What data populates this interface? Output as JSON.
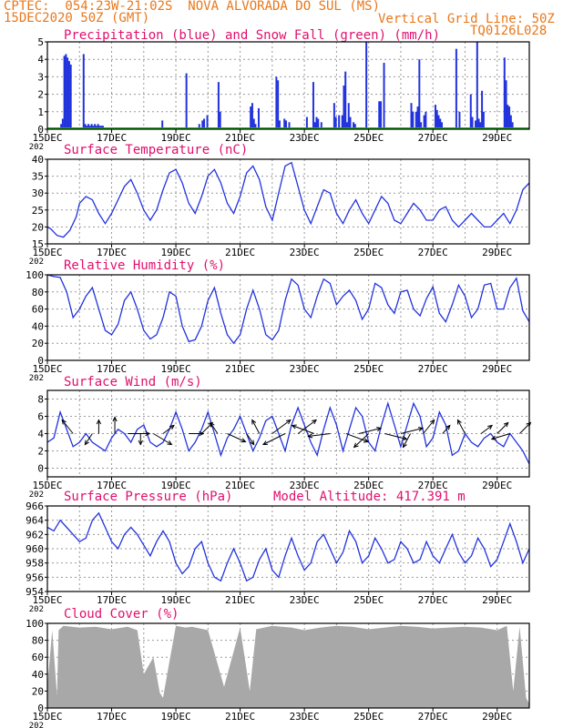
{
  "header": {
    "station": "CPTEC:  054:23W-21:02S  NOVA ALVORADA DO SUL (MS)",
    "date": "15DEC2020 50Z (GMT)",
    "grid": "Vertical Grid Line: 50Z",
    "code": "TQ0126L028",
    "color": "#e8781c"
  },
  "colors": {
    "title": "#e0106e",
    "line": "#2233dd",
    "snow": "#22aa22",
    "cloud": "#a8a8a8",
    "arrow": "#000000"
  },
  "x_axis": {
    "tick_labels": [
      "15DEC",
      "17DEC",
      "19DEC",
      "21DEC",
      "23DEC",
      "25DEC",
      "27DEC",
      "29DEC"
    ],
    "year_fragment": "202",
    "days": 15
  },
  "chart_data": [
    {
      "id": "precip",
      "type": "bar",
      "title": "Precipitation (blue) and Snow Fall (green) (mm/h)",
      "ylim": [
        0,
        5
      ],
      "yticks": [
        "0",
        "1",
        "2",
        "3",
        "4",
        "5"
      ],
      "series": [
        {
          "name": "Precipitation",
          "color": "blue",
          "x_days": [
            0.4,
            0.45,
            0.5,
            0.55,
            0.6,
            0.65,
            0.7,
            1.1,
            1.15,
            1.2,
            1.25,
            1.3,
            1.35,
            1.4,
            1.45,
            1.5,
            1.55,
            1.6,
            1.65,
            1.7,
            3.55,
            4.3,
            4.7,
            4.8,
            4.85,
            4.95,
            5.3,
            5.35,
            6.3,
            6.35,
            6.4,
            6.45,
            6.55,
            7.1,
            7.15,
            7.2,
            7.35,
            7.4,
            7.5,
            8.05,
            8.25,
            8.3,
            8.35,
            8.4,
            8.5,
            8.9,
            8.95,
            9.05,
            9.15,
            9.2,
            9.25,
            9.3,
            9.35,
            9.4,
            9.5,
            9.55,
            9.9,
            10.3,
            10.35,
            10.45,
            11.3,
            11.35,
            11.45,
            11.5,
            11.55,
            11.6,
            11.7,
            11.75,
            12.05,
            12.1,
            12.15,
            12.2,
            12.25,
            12.7,
            12.8,
            13.15,
            13.2,
            13.3,
            13.35,
            13.4,
            13.45,
            13.5,
            13.55,
            14.2,
            14.25,
            14.3,
            14.35,
            14.4,
            14.45
          ],
          "values": [
            0.3,
            0.6,
            4.2,
            4.3,
            4.1,
            3.9,
            3.7,
            4.3,
            0.3,
            0.2,
            0.3,
            0.2,
            0.3,
            0.2,
            0.3,
            0.2,
            0.3,
            0.2,
            0.2,
            0.2,
            0.5,
            3.2,
            0.3,
            0.5,
            0.6,
            0.8,
            2.7,
            1.0,
            1.3,
            1.5,
            0.6,
            0.3,
            1.2,
            3.0,
            2.8,
            0.5,
            0.6,
            0.5,
            0.4,
            0.7,
            2.7,
            0.4,
            0.7,
            0.6,
            0.4,
            1.5,
            0.7,
            0.8,
            0.8,
            2.5,
            3.3,
            0.4,
            1.5,
            0.7,
            0.4,
            0.3,
            5.0,
            1.6,
            1.6,
            3.8,
            1.5,
            1.0,
            1.0,
            1.3,
            4.0,
            0.4,
            0.8,
            1.0,
            1.4,
            1.1,
            0.8,
            0.6,
            0.4,
            4.6,
            1.0,
            2.0,
            0.7,
            0.5,
            5.0,
            0.6,
            0.4,
            2.2,
            1.0,
            4.1,
            2.8,
            1.4,
            1.3,
            0.8,
            0.4
          ]
        },
        {
          "name": "Snow Fall",
          "color": "green",
          "values": []
        }
      ]
    },
    {
      "id": "temp",
      "type": "line",
      "title": "Surface Temperature (nC)",
      "ylim": [
        15,
        40
      ],
      "yticks": [
        "15",
        "20",
        "25",
        "30",
        "35",
        "40"
      ],
      "x_days": [
        0,
        0.1,
        0.3,
        0.5,
        0.7,
        0.9,
        1.0,
        1.2,
        1.4,
        1.6,
        1.8,
        2.0,
        2.2,
        2.4,
        2.6,
        2.8,
        3.0,
        3.2,
        3.4,
        3.6,
        3.8,
        4.0,
        4.2,
        4.4,
        4.6,
        4.8,
        5.0,
        5.2,
        5.4,
        5.6,
        5.8,
        6.0,
        6.2,
        6.4,
        6.6,
        6.8,
        7.0,
        7.2,
        7.4,
        7.6,
        7.8,
        8.0,
        8.2,
        8.4,
        8.6,
        8.8,
        9.0,
        9.2,
        9.4,
        9.6,
        9.8,
        10.0,
        10.2,
        10.4,
        10.6,
        10.8,
        11.0,
        11.2,
        11.4,
        11.6,
        11.8,
        12.0,
        12.2,
        12.4,
        12.6,
        12.8,
        13.0,
        13.2,
        13.4,
        13.6,
        13.8,
        14.0,
        14.2,
        14.4,
        14.6,
        14.8,
        15.0
      ],
      "values": [
        20,
        19.5,
        17.5,
        17,
        19,
        23,
        27,
        29,
        28,
        24,
        21,
        24,
        28,
        32,
        34,
        30,
        25,
        22,
        25,
        31,
        36,
        37,
        33,
        27,
        24,
        29,
        35,
        37,
        33,
        27,
        24,
        29,
        36,
        38,
        34,
        26,
        22,
        30,
        38,
        39,
        32,
        25,
        21,
        26,
        31,
        30,
        24,
        21,
        25,
        28,
        24,
        21,
        25,
        29,
        27,
        22,
        21,
        24,
        27,
        25,
        22,
        22,
        25,
        26,
        22,
        20,
        22,
        24,
        22,
        20,
        20,
        22,
        24,
        21,
        25,
        31,
        33
      ],
      "series_color": "blue"
    },
    {
      "id": "rh",
      "type": "line",
      "title": "Relative Humidity (%)",
      "ylim": [
        0,
        100
      ],
      "yticks": [
        "0",
        "20",
        "40",
        "60",
        "80",
        "100"
      ],
      "x_days": [
        0,
        0.2,
        0.4,
        0.6,
        0.8,
        1.0,
        1.2,
        1.4,
        1.6,
        1.8,
        2.0,
        2.2,
        2.4,
        2.6,
        2.8,
        3.0,
        3.2,
        3.4,
        3.6,
        3.8,
        4.0,
        4.2,
        4.4,
        4.6,
        4.8,
        5.0,
        5.2,
        5.4,
        5.6,
        5.8,
        6.0,
        6.2,
        6.4,
        6.6,
        6.8,
        7.0,
        7.2,
        7.4,
        7.6,
        7.8,
        8.0,
        8.2,
        8.4,
        8.6,
        8.8,
        9.0,
        9.2,
        9.4,
        9.6,
        9.8,
        10.0,
        10.2,
        10.4,
        10.6,
        10.8,
        11.0,
        11.2,
        11.4,
        11.6,
        11.8,
        12.0,
        12.2,
        12.4,
        12.6,
        12.8,
        13.0,
        13.2,
        13.4,
        13.6,
        13.8,
        14.0,
        14.2,
        14.4,
        14.6,
        14.8,
        15.0
      ],
      "values": [
        100,
        98,
        97,
        80,
        50,
        60,
        75,
        85,
        60,
        35,
        30,
        42,
        70,
        80,
        60,
        35,
        25,
        30,
        50,
        80,
        75,
        40,
        22,
        24,
        40,
        70,
        85,
        55,
        30,
        20,
        30,
        60,
        82,
        60,
        30,
        24,
        35,
        70,
        95,
        88,
        60,
        50,
        75,
        95,
        90,
        65,
        75,
        82,
        70,
        48,
        60,
        90,
        85,
        65,
        55,
        80,
        82,
        60,
        52,
        72,
        86,
        55,
        45,
        65,
        88,
        75,
        50,
        60,
        88,
        90,
        60,
        60,
        85,
        96,
        58,
        45
      ]
    },
    {
      "id": "wind",
      "type": "line",
      "title": "Surface Wind (m/s)",
      "ylim": [
        -1,
        9
      ],
      "yticks": [
        "0",
        "2",
        "4",
        "6",
        "8"
      ],
      "x_days": [
        0,
        0.2,
        0.4,
        0.6,
        0.8,
        1.0,
        1.2,
        1.4,
        1.6,
        1.8,
        2.0,
        2.2,
        2.4,
        2.6,
        2.8,
        3.0,
        3.2,
        3.4,
        3.6,
        3.8,
        4.0,
        4.2,
        4.4,
        4.6,
        4.8,
        5.0,
        5.2,
        5.4,
        5.6,
        5.8,
        6.0,
        6.2,
        6.4,
        6.6,
        6.8,
        7.0,
        7.2,
        7.4,
        7.6,
        7.8,
        8.0,
        8.2,
        8.4,
        8.6,
        8.8,
        9.0,
        9.2,
        9.4,
        9.6,
        9.8,
        10.0,
        10.2,
        10.4,
        10.6,
        10.8,
        11.0,
        11.2,
        11.4,
        11.6,
        11.8,
        12.0,
        12.2,
        12.4,
        12.6,
        12.8,
        13.0,
        13.2,
        13.4,
        13.6,
        13.8,
        14.0,
        14.2,
        14.4,
        14.6,
        14.8,
        15.0
      ],
      "values": [
        3,
        3.5,
        6.5,
        4.5,
        2.5,
        3,
        4,
        3,
        2.5,
        2,
        3.5,
        4.5,
        4,
        3,
        4.5,
        5,
        3,
        2.5,
        3,
        4.5,
        6.5,
        4.5,
        2,
        3,
        4.5,
        6.5,
        4,
        1.5,
        3.5,
        4.5,
        6,
        4,
        2,
        3.5,
        5.5,
        6,
        4,
        2,
        5,
        7,
        5,
        3,
        1.5,
        4.5,
        7,
        5,
        2,
        4.5,
        7,
        6,
        3,
        2,
        5,
        7.5,
        5,
        2.5,
        5,
        7.5,
        6,
        2.5,
        3.5,
        6.5,
        5,
        1.5,
        2,
        4,
        3,
        2.5,
        3.5,
        4,
        3,
        2.5,
        4,
        3,
        2,
        0.5
      ],
      "arrows": [
        {
          "x": 0.8,
          "dx": -0.3,
          "dy": 0.5
        },
        {
          "x": 1.4,
          "dx": -0.2,
          "dy": -0.4
        },
        {
          "x": 1.6,
          "dx": 0.0,
          "dy": 0.5
        },
        {
          "x": 2.1,
          "dx": 0.0,
          "dy": 0.6
        },
        {
          "x": 2.5,
          "dx": 0.6,
          "dy": 0.0
        },
        {
          "x": 2.9,
          "dx": 0.0,
          "dy": -0.4
        },
        {
          "x": 3.3,
          "dx": 0.5,
          "dy": -0.4
        },
        {
          "x": 3.6,
          "dx": 0.3,
          "dy": 0.3
        },
        {
          "x": 4.4,
          "dx": 0.4,
          "dy": 0.0
        },
        {
          "x": 4.8,
          "dx": 0.3,
          "dy": 0.4
        },
        {
          "x": 5.3,
          "dx": -0.2,
          "dy": 0.4
        },
        {
          "x": 5.6,
          "dx": 0.5,
          "dy": -0.3
        },
        {
          "x": 6.2,
          "dx": 0.2,
          "dy": -0.4
        },
        {
          "x": 6.6,
          "dx": -0.2,
          "dy": 0.5
        },
        {
          "x": 7.0,
          "dx": 0.5,
          "dy": 0.5
        },
        {
          "x": 7.4,
          "dx": -0.6,
          "dy": -0.4
        },
        {
          "x": 7.8,
          "dx": 0.5,
          "dy": 0.5
        },
        {
          "x": 8.3,
          "dx": -0.6,
          "dy": 0.3
        },
        {
          "x": 8.8,
          "dx": -0.6,
          "dy": -0.1
        },
        {
          "x": 9.3,
          "dx": 0.6,
          "dy": -0.3
        },
        {
          "x": 9.7,
          "dx": 0.6,
          "dy": 0.2
        },
        {
          "x": 10.0,
          "dx": -0.4,
          "dy": -0.5
        },
        {
          "x": 10.5,
          "dx": 0.6,
          "dy": -0.2
        },
        {
          "x": 11.0,
          "dx": 0.6,
          "dy": 0.2
        },
        {
          "x": 11.3,
          "dx": -0.2,
          "dy": -0.5
        },
        {
          "x": 11.7,
          "dx": 0.3,
          "dy": 0.5
        },
        {
          "x": 12.3,
          "dx": 0.2,
          "dy": 0.3
        },
        {
          "x": 13.0,
          "dx": -0.2,
          "dy": 0.5
        },
        {
          "x": 13.5,
          "dx": 0.3,
          "dy": 0.3
        },
        {
          "x": 14.0,
          "dx": 0.3,
          "dy": 0.4
        },
        {
          "x": 14.4,
          "dx": -0.5,
          "dy": -0.2
        },
        {
          "x": 14.7,
          "dx": 0.3,
          "dy": 0.4
        }
      ]
    },
    {
      "id": "pressure",
      "type": "line",
      "title": "Surface Pressure (hPa)",
      "annotation": "Model Altitude: 417.391 m",
      "ylim": [
        954,
        966
      ],
      "yticks": [
        "954",
        "956",
        "958",
        "960",
        "962",
        "964",
        "966"
      ],
      "x_days": [
        0,
        0.2,
        0.4,
        0.6,
        0.8,
        1.0,
        1.2,
        1.4,
        1.6,
        1.8,
        2.0,
        2.2,
        2.4,
        2.6,
        2.8,
        3.0,
        3.2,
        3.4,
        3.6,
        3.8,
        4.0,
        4.2,
        4.4,
        4.6,
        4.8,
        5.0,
        5.2,
        5.4,
        5.6,
        5.8,
        6.0,
        6.2,
        6.4,
        6.6,
        6.8,
        7.0,
        7.2,
        7.4,
        7.6,
        7.8,
        8.0,
        8.2,
        8.4,
        8.6,
        8.8,
        9.0,
        9.2,
        9.4,
        9.6,
        9.8,
        10.0,
        10.2,
        10.4,
        10.6,
        10.8,
        11.0,
        11.2,
        11.4,
        11.6,
        11.8,
        12.0,
        12.2,
        12.4,
        12.6,
        12.8,
        13.0,
        13.2,
        13.4,
        13.6,
        13.8,
        14.0,
        14.2,
        14.4,
        14.6,
        14.8,
        15.0
      ],
      "values": [
        963,
        962.5,
        964,
        963,
        962,
        961,
        961.5,
        964,
        965,
        963,
        961,
        960,
        962,
        963,
        962,
        960.5,
        959,
        961,
        962.5,
        961,
        958,
        956.5,
        957.5,
        960,
        961,
        958,
        956,
        955.5,
        958,
        960,
        958,
        955.5,
        956,
        958.5,
        960,
        957,
        956,
        959,
        961.5,
        959,
        957,
        958,
        961,
        962,
        960,
        958,
        959.5,
        962.5,
        961,
        958,
        959,
        961.5,
        960,
        958,
        958.5,
        961,
        960,
        958,
        958.5,
        961,
        959,
        958,
        960,
        962,
        959.5,
        958,
        959,
        961.5,
        960,
        957.5,
        958.5,
        961,
        963.5,
        961,
        958,
        960
      ]
    },
    {
      "id": "cloud",
      "type": "area",
      "title": "Cloud Cover (%)",
      "ylim": [
        0,
        100
      ],
      "yticks": [
        "0",
        "20",
        "40",
        "60",
        "80",
        "100"
      ],
      "x_days": [
        0,
        0.15,
        0.3,
        0.35,
        0.5,
        1.0,
        1.5,
        2.0,
        2.5,
        2.8,
        3.0,
        3.3,
        3.5,
        3.6,
        3.8,
        4.0,
        4.3,
        4.5,
        5.0,
        5.5,
        6.0,
        6.3,
        6.5,
        7.0,
        7.3,
        7.6,
        8.0,
        8.5,
        9.0,
        9.5,
        10.0,
        10.5,
        11.0,
        11.5,
        12.0,
        12.5,
        13.0,
        13.5,
        14.0,
        14.3,
        14.5,
        14.7,
        14.9,
        15.0
      ],
      "values": [
        25,
        92,
        15,
        92,
        97,
        95,
        96,
        93,
        96,
        92,
        40,
        60,
        18,
        12,
        55,
        97,
        95,
        96,
        92,
        25,
        95,
        20,
        93,
        97,
        96,
        95,
        92,
        95,
        97,
        96,
        93,
        95,
        97,
        96,
        94,
        95,
        96,
        95,
        92,
        97,
        20,
        96,
        12,
        5
      ]
    }
  ]
}
